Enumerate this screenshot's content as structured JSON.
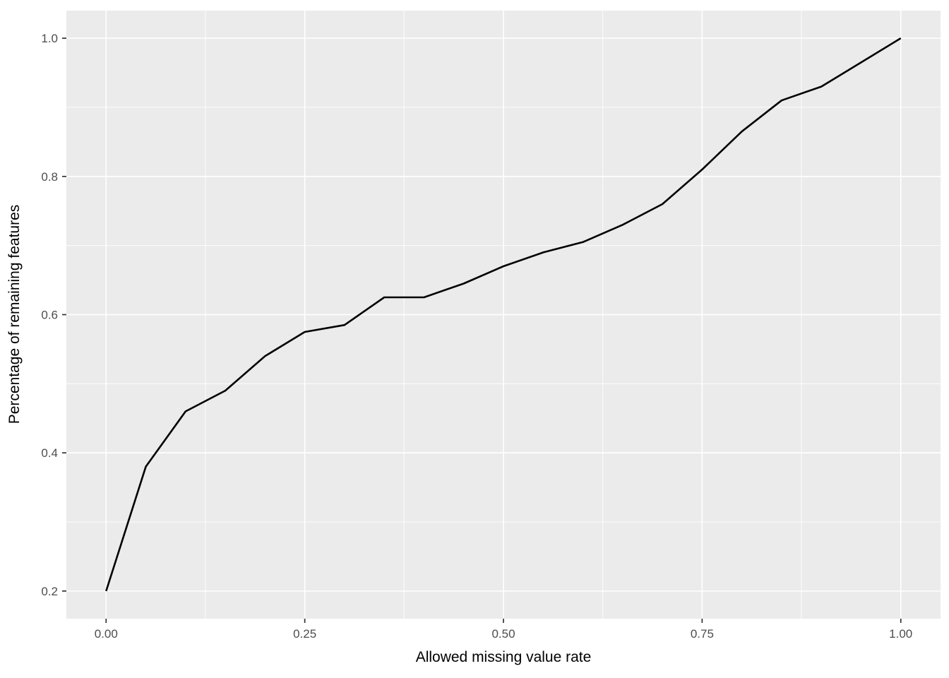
{
  "figure": {
    "background": "#FFFFFF",
    "panel_background": "#EBEBEB",
    "grid_color": "#FFFFFF",
    "tick_mark_color": "#333333",
    "tick_label_color": "#4D4D4D",
    "axis_title_color": "#000000",
    "line_color": "#000000"
  },
  "chart_data": {
    "type": "line",
    "title": "",
    "xlabel": "Allowed missing value rate",
    "ylabel": "Percentage of remaining features",
    "x": [
      0.0,
      0.05,
      0.1,
      0.15,
      0.2,
      0.25,
      0.3,
      0.35,
      0.4,
      0.45,
      0.5,
      0.55,
      0.6,
      0.65,
      0.7,
      0.75,
      0.8,
      0.85,
      0.9,
      0.95,
      1.0
    ],
    "y": [
      0.2,
      0.38,
      0.46,
      0.49,
      0.54,
      0.575,
      0.585,
      0.625,
      0.625,
      0.645,
      0.67,
      0.69,
      0.705,
      0.73,
      0.76,
      0.81,
      0.865,
      0.91,
      0.93,
      0.965,
      1.0
    ],
    "xlim": [
      -0.05,
      1.05
    ],
    "ylim": [
      0.16,
      1.04
    ],
    "x_ticks": {
      "values": [
        0.0,
        0.25,
        0.5,
        0.75,
        1.0
      ],
      "labels": [
        "0.00",
        "0.25",
        "0.50",
        "0.75",
        "1.00"
      ]
    },
    "y_ticks": {
      "values": [
        0.2,
        0.4,
        0.6,
        0.8,
        1.0
      ],
      "labels": [
        "0.2",
        "0.4",
        "0.6",
        "0.8",
        "1.0"
      ]
    },
    "x_minor": [
      0.125,
      0.375,
      0.625,
      0.875
    ],
    "y_minor": [
      0.3,
      0.5,
      0.7,
      0.9
    ],
    "grid": true,
    "legend": "none"
  }
}
